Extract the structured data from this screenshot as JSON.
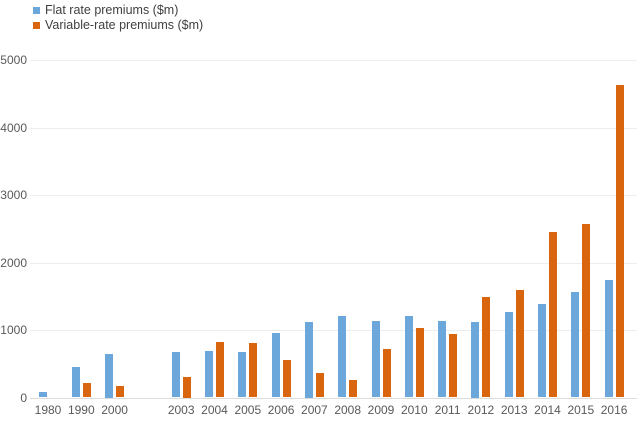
{
  "chart_data": {
    "type": "bar",
    "title": "",
    "xlabel": "",
    "ylabel": "",
    "categories": [
      "1980",
      "1990",
      "2000",
      "2003",
      "2004",
      "2005",
      "2006",
      "2007",
      "2008",
      "2009",
      "2010",
      "2011",
      "2012",
      "2013",
      "2014",
      "2015",
      "2016"
    ],
    "x_gap_after": "2000",
    "series": [
      {
        "name": "Flat rate premiums ($m)",
        "color": "#6BA7DB",
        "values": [
          85,
          445,
          650,
          680,
          695,
          680,
          955,
          1125,
          1210,
          1135,
          1210,
          1140,
          1125,
          1270,
          1380,
          1565,
          1745
        ]
      },
      {
        "name": "Variable-rate premiums ($m)",
        "color": "#D9650F",
        "values": [
          null,
          220,
          170,
          300,
          820,
          805,
          560,
          360,
          260,
          715,
          1030,
          945,
          1495,
          1595,
          2445,
          2570,
          4635
        ]
      }
    ],
    "ylim": [
      0,
      5000
    ],
    "yticks": [
      0,
      1000,
      2000,
      3000,
      4000,
      5000
    ],
    "grid": "horizontal",
    "legend_position": "top-left",
    "axis_text_color": "#595959",
    "legend_text_color": "#404040",
    "gridline_color": "#ededed"
  }
}
